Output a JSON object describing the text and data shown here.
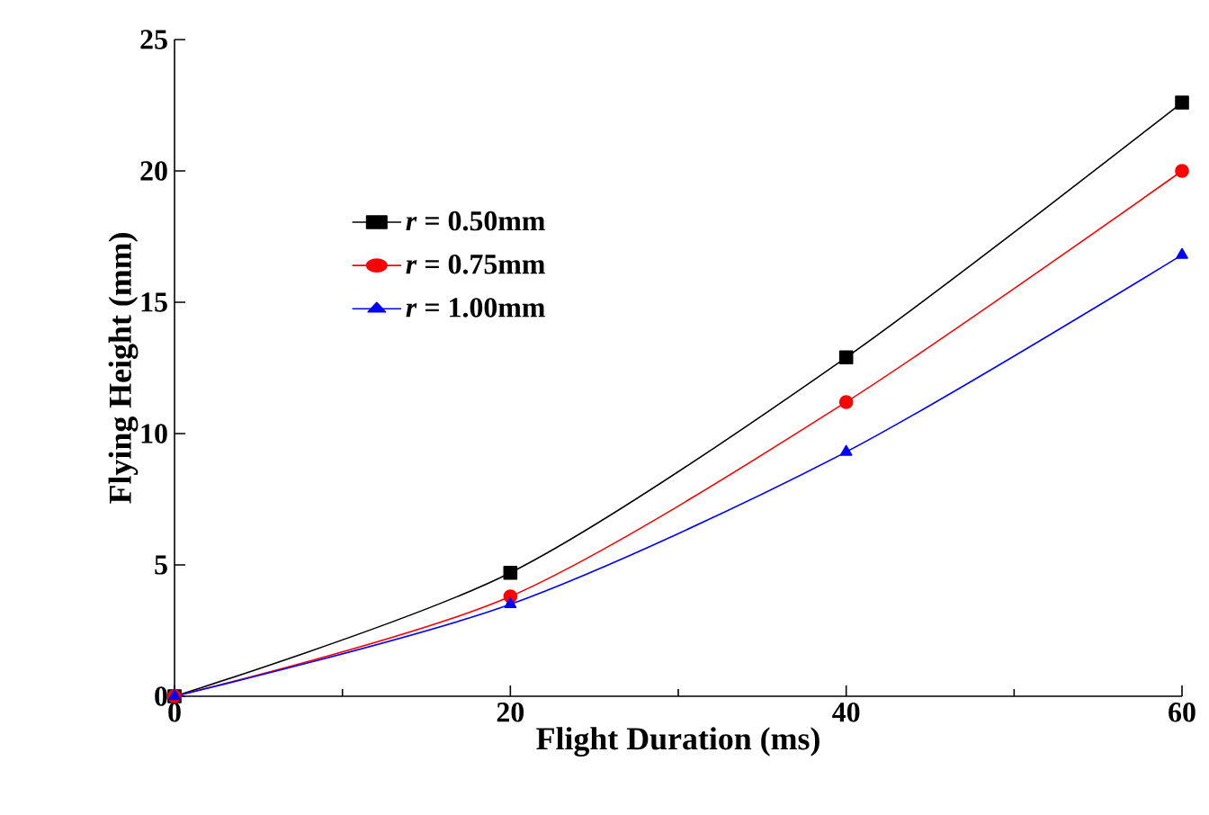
{
  "chart_data": {
    "type": "line",
    "xlabel": "Flight Duration  (ms)",
    "ylabel": "Flying Height  (mm)",
    "x": [
      0,
      20,
      40,
      60
    ],
    "series": [
      {
        "name": "*r* = 0.50mm",
        "color": "#000000",
        "marker": "square",
        "values": [
          0,
          4.7,
          12.9,
          22.6
        ]
      },
      {
        "name": "*r* = 0.75mm",
        "color": "#ff0000",
        "marker": "circle",
        "values": [
          0,
          3.8,
          11.2,
          20.0
        ]
      },
      {
        "name": "*r* = 1.00mm",
        "color": "#0000ff",
        "marker": "triangle",
        "values": [
          0,
          3.5,
          9.3,
          16.8
        ]
      }
    ],
    "xlim": [
      0,
      60
    ],
    "ylim": [
      0,
      25
    ],
    "xticks": [
      0,
      20,
      40,
      60
    ],
    "yticks": [
      0,
      5,
      10,
      15,
      20,
      25
    ],
    "grid": false,
    "legend": "top left",
    "line_style": "solid"
  }
}
